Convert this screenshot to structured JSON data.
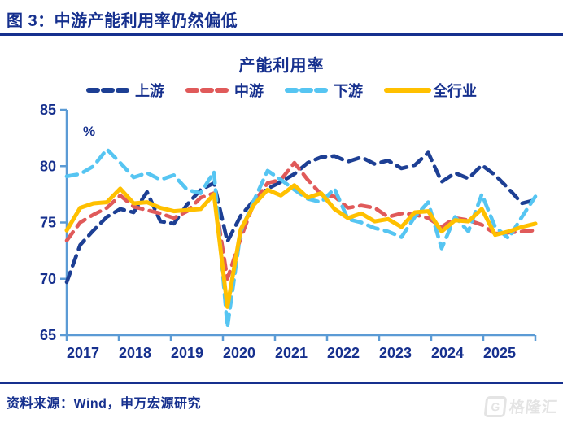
{
  "figure": {
    "title": "图 3：中游产能利用率仍然偏低"
  },
  "footer": {
    "source": "资料来源：Wind，申万宏源研究"
  },
  "watermark": {
    "logo_glyph": "G",
    "text": "格隆汇"
  },
  "colors": {
    "navy_text": "#16308e",
    "axis_blue": "#5b9bd5",
    "upstream": "#1d3f94",
    "midstream": "#e05a5a",
    "downstream": "#56c5f2",
    "all_industry": "#ffc000",
    "watermark_gray": "#e4e4e4"
  },
  "chart_data": {
    "type": "line",
    "title": "产能利用率",
    "unit_label": "%",
    "ylim": [
      65,
      85
    ],
    "yticks": [
      65,
      70,
      75,
      80,
      85
    ],
    "x_tick_labels": [
      "2017",
      "2018",
      "2019",
      "2020",
      "2021",
      "2022",
      "2023",
      "2024",
      "2025"
    ],
    "x_frequency": "quarterly",
    "grid": false,
    "legend_position": "top",
    "series": [
      {
        "name": "上游",
        "color": "#1d3f94",
        "dashed": true,
        "values": [
          69.7,
          73.0,
          74.3,
          75.5,
          76.2,
          75.9,
          77.7,
          75.1,
          74.9,
          76.6,
          77.9,
          78.5,
          73.3,
          75.6,
          77.0,
          78.0,
          78.6,
          79.3,
          80.3,
          80.8,
          80.9,
          80.4,
          80.8,
          80.2,
          80.5,
          79.8,
          80.1,
          81.2,
          78.6,
          79.4,
          78.9,
          80.1,
          79.2,
          78.0,
          76.7,
          77.0
        ]
      },
      {
        "name": "中游",
        "color": "#e05a5a",
        "dashed": true,
        "values": [
          73.4,
          75.0,
          75.7,
          76.3,
          77.4,
          76.4,
          76.1,
          75.8,
          75.4,
          76.0,
          77.2,
          77.6,
          70.0,
          73.6,
          76.8,
          78.5,
          78.8,
          80.3,
          78.8,
          77.5,
          77.3,
          76.3,
          76.5,
          76.3,
          75.5,
          75.8,
          75.7,
          75.4,
          74.6,
          75.4,
          75.2,
          74.8,
          74.0,
          74.1,
          74.2,
          74.3
        ]
      },
      {
        "name": "下游",
        "color": "#56c5f2",
        "dashed": true,
        "values": [
          79.1,
          79.3,
          80.0,
          81.5,
          80.3,
          79.0,
          79.4,
          78.8,
          79.2,
          77.9,
          77.6,
          79.5,
          65.7,
          74.2,
          77.0,
          79.6,
          78.8,
          77.9,
          77.1,
          76.8,
          78.0,
          75.3,
          75.0,
          74.5,
          74.2,
          73.7,
          75.5,
          76.8,
          72.7,
          75.5,
          74.2,
          77.5,
          74.6,
          73.6,
          75.5,
          77.3
        ]
      },
      {
        "name": "全行业",
        "color": "#ffc000",
        "dashed": false,
        "values": [
          74.3,
          76.3,
          76.7,
          76.8,
          78.0,
          76.7,
          76.8,
          76.3,
          76.0,
          76.1,
          76.2,
          77.5,
          67.5,
          74.4,
          76.6,
          77.9,
          77.4,
          78.3,
          77.2,
          77.6,
          76.2,
          75.4,
          75.8,
          75.1,
          75.3,
          74.6,
          75.9,
          76.0,
          74.2,
          75.2,
          75.1,
          76.2,
          73.9,
          74.2,
          74.6,
          74.9
        ]
      }
    ]
  }
}
